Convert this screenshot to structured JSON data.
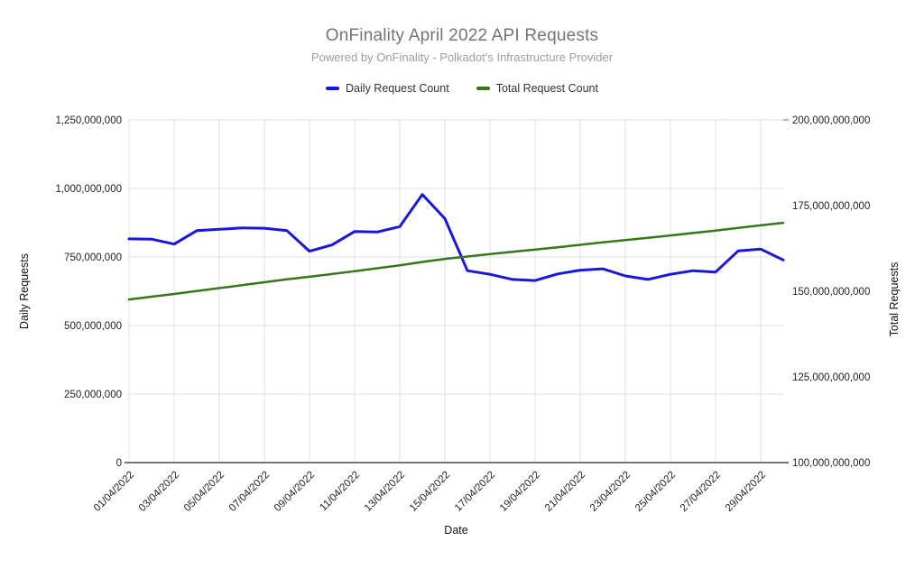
{
  "chart": {
    "title": "OnFinality April 2022 API Requests",
    "subtitle": "Powered by OnFinality - Polkadot's Infrastructure Provider",
    "legend": [
      {
        "label": "Daily Request Count",
        "color": "#1717de"
      },
      {
        "label": "Total Request Count",
        "color": "#38761d"
      }
    ],
    "left_axis": {
      "title": "Daily Requests",
      "tick_labels": [
        "0",
        "250,000,000",
        "500,000,000",
        "750,000,000",
        "1,000,000,000",
        "1,250,000,000"
      ],
      "tick_values": [
        0,
        250000000,
        500000000,
        750000000,
        1000000000,
        1250000000
      ],
      "range": [
        0,
        1250000000
      ]
    },
    "right_axis": {
      "title": "Total Requests",
      "tick_labels": [
        "100,000,000,000",
        "125,000,000,000",
        "150,000,000,000",
        "175,000,000,000",
        "200,000,000,000"
      ],
      "tick_values": [
        100000000000,
        125000000000,
        150000000000,
        175000000000,
        200000000000
      ],
      "range": [
        100000000000,
        200000000000
      ]
    },
    "x_axis": {
      "title": "Date",
      "tick_labels": [
        "01/04/2022",
        "03/04/2022",
        "05/04/2022",
        "07/04/2022",
        "09/04/2022",
        "11/04/2022",
        "13/04/2022",
        "15/04/2022",
        "17/04/2022",
        "19/04/2022",
        "21/04/2022",
        "23/04/2022",
        "25/04/2022",
        "27/04/2022",
        "29/04/2022"
      ]
    },
    "colors": {
      "gridline": "#e0e0e0",
      "baseline": "#757575",
      "tick_text": "#222222"
    }
  },
  "chart_data": {
    "type": "line",
    "title": "OnFinality April 2022 API Requests",
    "subtitle": "Powered by OnFinality - Polkadot's Infrastructure Provider",
    "xlabel": "Date",
    "ylabel_left": "Daily Requests",
    "ylabel_right": "Total Requests",
    "ylim_left": [
      0,
      1250000000
    ],
    "ylim_right": [
      100000000000,
      200000000000
    ],
    "grid": true,
    "legend_position": "top",
    "x": [
      "01/04/2022",
      "02/04/2022",
      "03/04/2022",
      "04/04/2022",
      "05/04/2022",
      "06/04/2022",
      "07/04/2022",
      "08/04/2022",
      "09/04/2022",
      "10/04/2022",
      "11/04/2022",
      "12/04/2022",
      "13/04/2022",
      "14/04/2022",
      "15/04/2022",
      "16/04/2022",
      "17/04/2022",
      "18/04/2022",
      "19/04/2022",
      "20/04/2022",
      "21/04/2022",
      "22/04/2022",
      "23/04/2022",
      "24/04/2022",
      "25/04/2022",
      "26/04/2022",
      "27/04/2022",
      "28/04/2022",
      "29/04/2022",
      "30/04/2022"
    ],
    "series": [
      {
        "name": "Daily Request Count",
        "axis": "left",
        "color": "#1717de",
        "stroke_width": 3,
        "values": [
          816000000,
          815000000,
          797000000,
          846000000,
          851000000,
          856000000,
          855000000,
          846000000,
          771000000,
          794000000,
          843000000,
          841000000,
          861000000,
          978000000,
          890000000,
          700000000,
          687000000,
          668000000,
          664000000,
          688000000,
          702000000,
          707000000,
          681000000,
          668000000,
          687000000,
          700000000,
          695000000,
          772000000,
          779000000,
          739000000
        ]
      },
      {
        "name": "Total Request Count",
        "axis": "right",
        "color": "#38761d",
        "stroke_width": 2.5,
        "values": [
          147600000000,
          148415000000,
          149212000000,
          150058000000,
          150909000000,
          151765000000,
          152620000000,
          153466000000,
          154237000000,
          155031000000,
          155874000000,
          156715000000,
          157576000000,
          158554000000,
          159444000000,
          160144000000,
          160831000000,
          161499000000,
          162163000000,
          162851000000,
          163553000000,
          164260000000,
          164941000000,
          165609000000,
          166296000000,
          166996000000,
          167691000000,
          168463000000,
          169242000000,
          169981000000
        ]
      }
    ]
  }
}
